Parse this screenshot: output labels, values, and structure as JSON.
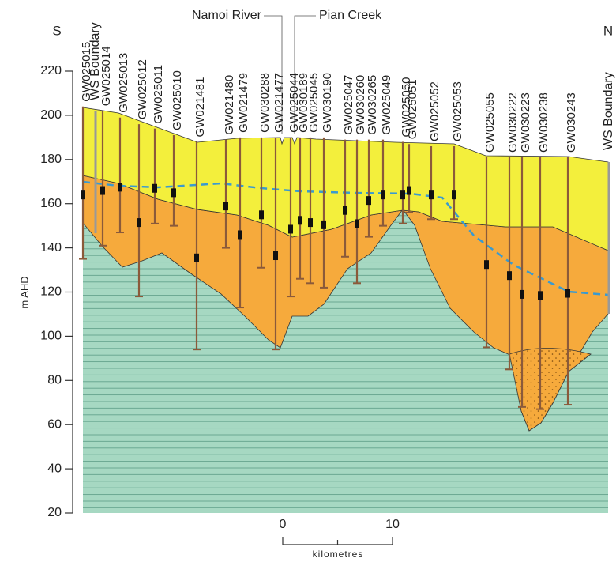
{
  "south": "S",
  "north": "N",
  "y_axis": {
    "label": "m AHD",
    "lim": [
      20,
      220
    ],
    "ticks": [
      20,
      40,
      60,
      80,
      100,
      120,
      140,
      160,
      180,
      200,
      220
    ]
  },
  "annotations": [
    "Namoi River",
    "Pian Creek"
  ],
  "boundaries": [
    "WS Boundary",
    "WS Boundary"
  ],
  "bores": [
    {
      "name": "GW025015",
      "top": 204,
      "bottom": 135
    },
    {
      "name": "GW025014",
      "top": 202,
      "bottom": 141
    },
    {
      "name": "GW025013",
      "top": 199,
      "bottom": 147
    },
    {
      "name": "GW025012",
      "top": 196,
      "bottom": 118
    },
    {
      "name": "GW025011",
      "top": 194,
      "bottom": 151
    },
    {
      "name": "GW025010",
      "top": 191,
      "bottom": 150
    },
    {
      "name": "GW021481",
      "top": 188,
      "bottom": 94
    },
    {
      "name": "GW021480",
      "top": 189,
      "bottom": 140
    },
    {
      "name": "GW021479",
      "top": 190,
      "bottom": 113
    },
    {
      "name": "GW030288",
      "top": 190,
      "bottom": 131
    },
    {
      "name": "GW021477",
      "top": 190,
      "bottom": 94
    },
    {
      "name": "GW025044",
      "top": 190,
      "bottom": 118
    },
    {
      "name": "GW030189",
      "top": 190,
      "bottom": 126
    },
    {
      "name": "GW025045",
      "top": 190,
      "bottom": 124
    },
    {
      "name": "GW030190",
      "top": 190,
      "bottom": 122
    },
    {
      "name": "GW025047",
      "top": 189,
      "bottom": 136
    },
    {
      "name": "GW030260",
      "top": 189,
      "bottom": 124
    },
    {
      "name": "GW030265",
      "top": 189,
      "bottom": 145
    },
    {
      "name": "GW025049",
      "top": 189,
      "bottom": 150
    },
    {
      "name": "GW025050",
      "top": 188,
      "bottom": 151
    },
    {
      "name": "GW025051",
      "top": 187,
      "bottom": 156
    },
    {
      "name": "GW025052",
      "top": 186,
      "bottom": 153
    },
    {
      "name": "GW025053",
      "top": 186,
      "bottom": 153
    },
    {
      "name": "GW025055",
      "top": 181,
      "bottom": 95
    },
    {
      "name": "GW030222",
      "top": 181,
      "bottom": 85
    },
    {
      "name": "GW030223",
      "top": 181,
      "bottom": 68
    },
    {
      "name": "GW030238",
      "top": 181,
      "bottom": 67
    },
    {
      "name": "GW030243",
      "top": 181,
      "bottom": 69
    }
  ],
  "scale_bar": {
    "ticks": [
      0,
      10
    ],
    "label": "kilometres"
  }
}
